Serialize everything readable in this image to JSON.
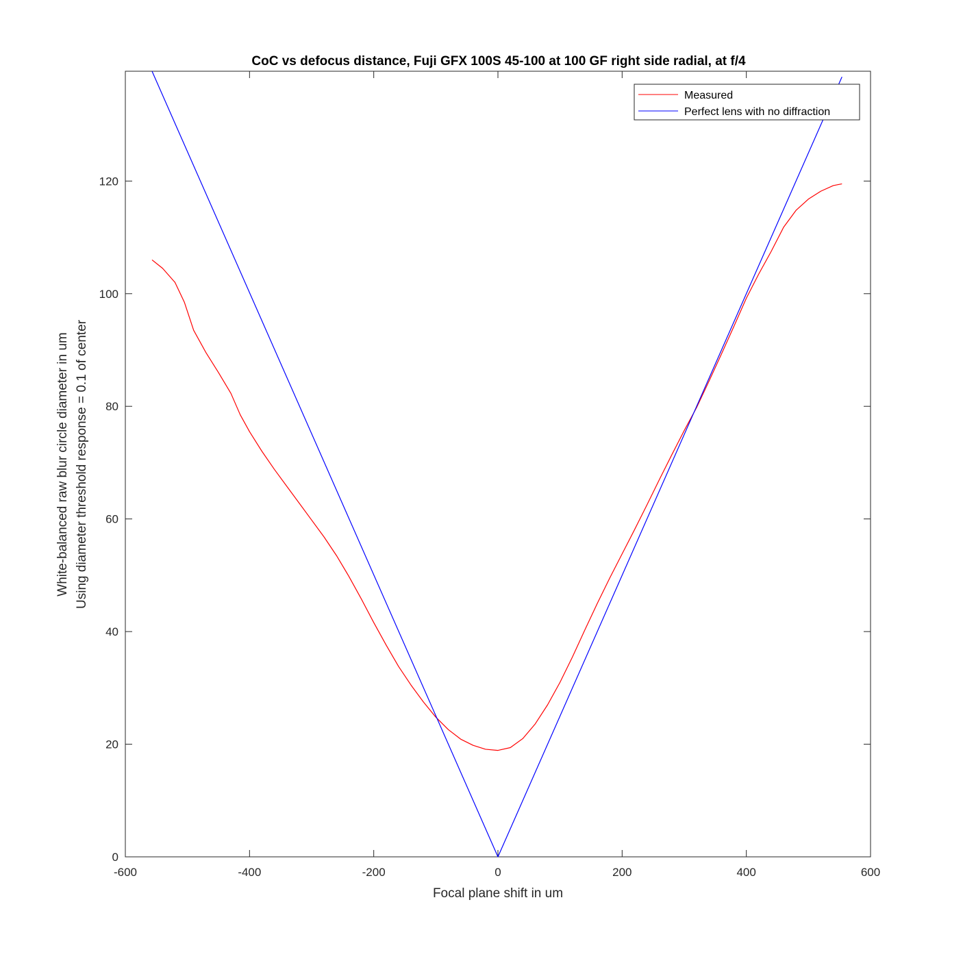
{
  "chart_data": {
    "type": "line",
    "title": "CoC vs defocus distance, Fuji GFX 100S 45-100 at 100 GF right side radial, at f/4",
    "xlabel": "Focal plane shift in um",
    "ylabel": [
      "White-balanced raw blur circle diameter in um",
      "Using diameter threshold response = 0.1 of center"
    ],
    "xlim": [
      -600,
      600
    ],
    "ylim": [
      0,
      139.5
    ],
    "xticks": [
      -600,
      -400,
      -200,
      0,
      200,
      400,
      600
    ],
    "yticks": [
      0,
      20,
      40,
      60,
      80,
      100,
      120
    ],
    "xtick_labels": [
      "-600",
      "-400",
      "-200",
      "0",
      "200",
      "400",
      "600"
    ],
    "ytick_labels": [
      "0",
      "20",
      "40",
      "60",
      "80",
      "100",
      "120"
    ],
    "grid": false,
    "legend": {
      "placement": "top-right"
    },
    "series": [
      {
        "name": "Measured",
        "color": "#ff0000",
        "x": [
          -557,
          -540,
          -520,
          -505,
          -490,
          -470,
          -450,
          -430,
          -415,
          -400,
          -380,
          -360,
          -340,
          -320,
          -300,
          -280,
          -260,
          -240,
          -220,
          -200,
          -180,
          -160,
          -140,
          -120,
          -100,
          -80,
          -60,
          -40,
          -20,
          0,
          20,
          40,
          60,
          80,
          100,
          120,
          140,
          160,
          180,
          200,
          220,
          240,
          260,
          280,
          300,
          320,
          340,
          360,
          380,
          400,
          420,
          440,
          460,
          480,
          500,
          520,
          540,
          554
        ],
        "y": [
          106,
          104.5,
          102,
          98.5,
          93.5,
          89.5,
          86,
          82.3,
          78.5,
          75.5,
          72,
          68.8,
          65.8,
          62.8,
          59.8,
          56.8,
          53.5,
          49.8,
          45.8,
          41.6,
          37.6,
          33.8,
          30.5,
          27.5,
          24.8,
          22.6,
          20.9,
          19.8,
          19.1,
          18.9,
          19.4,
          21,
          23.6,
          27,
          31,
          35.5,
          40.3,
          45,
          49.5,
          53.8,
          58.1,
          62.5,
          67,
          71.4,
          75.7,
          79.8,
          84.5,
          89.3,
          94.2,
          99.2,
          103.5,
          107.5,
          111.8,
          114.8,
          116.8,
          118.2,
          119.2,
          119.5
        ]
      },
      {
        "name": "Perfect lens with no diffraction",
        "color": "#0000ff",
        "x": [
          -557,
          0,
          554
        ],
        "y": [
          139.5,
          0,
          138.5
        ]
      }
    ]
  }
}
